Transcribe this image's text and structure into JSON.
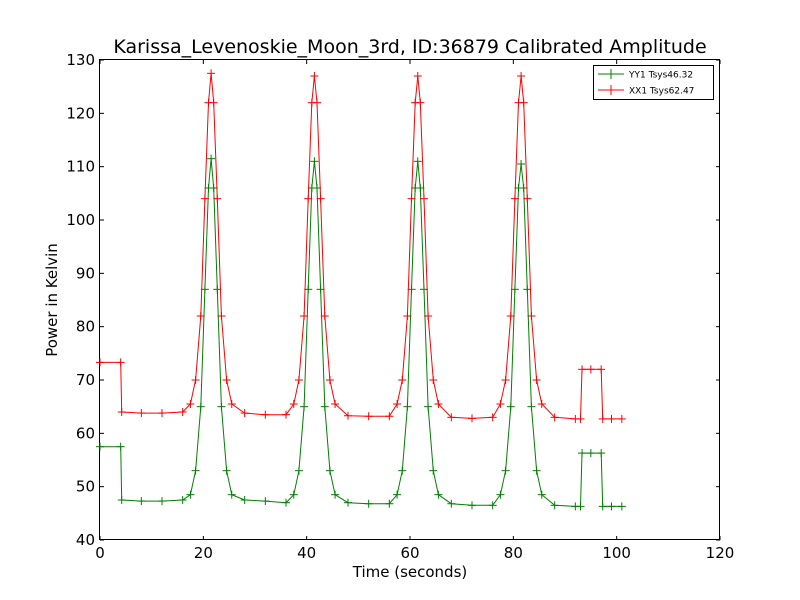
{
  "chart_data": {
    "type": "line",
    "title": "Karissa_Levenoskie_Moon_3rd, ID:36879 Calibrated Amplitude",
    "xlabel": "Time (seconds)",
    "ylabel": "Power in Kelvin",
    "xlim": [
      0,
      120
    ],
    "ylim": [
      40,
      130
    ],
    "x_ticks": [
      0,
      20,
      40,
      60,
      80,
      100,
      120
    ],
    "y_ticks": [
      40,
      50,
      60,
      70,
      80,
      90,
      100,
      110,
      120,
      130
    ],
    "x_tick_labels": [
      "0",
      "20",
      "40",
      "60",
      "80",
      "100",
      "120"
    ],
    "y_tick_labels": [
      "40",
      "50",
      "60",
      "70",
      "80",
      "90",
      "100",
      "110",
      "120",
      "130"
    ],
    "grid": false,
    "legend_position": "top-right",
    "marker": "+",
    "series": [
      {
        "name": "YY1 Tsys46.32",
        "color": "#008000",
        "x": [
          0.0,
          4.0,
          4.2,
          8.0,
          12.0,
          16.0,
          17.5,
          18.5,
          19.5,
          20.3,
          21.0,
          21.5,
          22.0,
          22.7,
          23.5,
          24.5,
          25.5,
          28.0,
          32.0,
          36.0,
          37.5,
          38.5,
          39.5,
          40.3,
          41.0,
          41.5,
          42.0,
          42.7,
          43.5,
          44.5,
          45.5,
          48.0,
          52.0,
          56.0,
          57.5,
          58.5,
          59.5,
          60.3,
          61.0,
          61.5,
          62.0,
          62.7,
          63.5,
          64.5,
          65.5,
          68.0,
          72.0,
          76.0,
          77.5,
          78.5,
          79.5,
          80.3,
          81.0,
          81.5,
          82.0,
          82.7,
          83.5,
          84.5,
          85.5,
          88.0,
          92.0,
          93.0,
          93.3,
          95.0,
          97.0,
          97.3,
          99.0,
          101.0
        ],
        "y": [
          57.5,
          57.5,
          47.5,
          47.3,
          47.3,
          47.5,
          48.5,
          53.0,
          65.0,
          87.0,
          106.0,
          111.5,
          106.0,
          87.0,
          65.0,
          53.0,
          48.5,
          47.5,
          47.3,
          47.0,
          48.5,
          53.0,
          65.0,
          87.0,
          106.0,
          111.0,
          106.0,
          87.0,
          65.0,
          53.0,
          48.5,
          47.0,
          46.8,
          46.8,
          48.5,
          53.0,
          65.0,
          87.0,
          106.0,
          111.0,
          106.0,
          87.0,
          65.0,
          53.0,
          48.5,
          46.8,
          46.5,
          46.5,
          48.5,
          53.0,
          65.0,
          87.0,
          106.0,
          110.5,
          106.0,
          87.0,
          65.0,
          53.0,
          48.5,
          46.5,
          46.3,
          46.3,
          56.3,
          56.3,
          56.3,
          46.3,
          46.3,
          46.3
        ]
      },
      {
        "name": "XX1 Tsys62.47",
        "color": "#ff0000",
        "x": [
          0.0,
          4.0,
          4.2,
          8.0,
          12.0,
          16.0,
          17.5,
          18.5,
          19.5,
          20.3,
          21.0,
          21.5,
          22.0,
          22.7,
          23.5,
          24.5,
          25.5,
          28.0,
          32.0,
          36.0,
          37.5,
          38.5,
          39.5,
          40.3,
          41.0,
          41.5,
          42.0,
          42.7,
          43.5,
          44.5,
          45.5,
          48.0,
          52.0,
          56.0,
          57.5,
          58.5,
          59.5,
          60.3,
          61.0,
          61.5,
          62.0,
          62.7,
          63.5,
          64.5,
          65.5,
          68.0,
          72.0,
          76.0,
          77.5,
          78.5,
          79.5,
          80.3,
          81.0,
          81.5,
          82.0,
          82.7,
          83.5,
          84.5,
          85.5,
          88.0,
          92.0,
          93.0,
          93.3,
          95.0,
          97.0,
          97.3,
          99.0,
          101.0
        ],
        "y": [
          73.3,
          73.3,
          64.0,
          63.8,
          63.8,
          64.0,
          65.5,
          70.0,
          82.0,
          104.0,
          122.0,
          127.5,
          122.0,
          104.0,
          82.0,
          70.0,
          65.5,
          63.8,
          63.5,
          63.5,
          65.5,
          70.0,
          82.0,
          104.0,
          122.0,
          127.0,
          122.0,
          104.0,
          82.0,
          70.0,
          65.5,
          63.3,
          63.2,
          63.2,
          65.5,
          70.0,
          82.0,
          104.0,
          122.0,
          127.0,
          122.0,
          104.0,
          82.0,
          70.0,
          65.5,
          63.0,
          62.8,
          63.0,
          65.5,
          70.0,
          82.0,
          104.0,
          122.0,
          127.0,
          122.0,
          104.0,
          82.0,
          70.0,
          65.5,
          63.0,
          62.7,
          62.7,
          72.0,
          72.0,
          72.0,
          62.7,
          62.7,
          62.7
        ]
      }
    ]
  }
}
